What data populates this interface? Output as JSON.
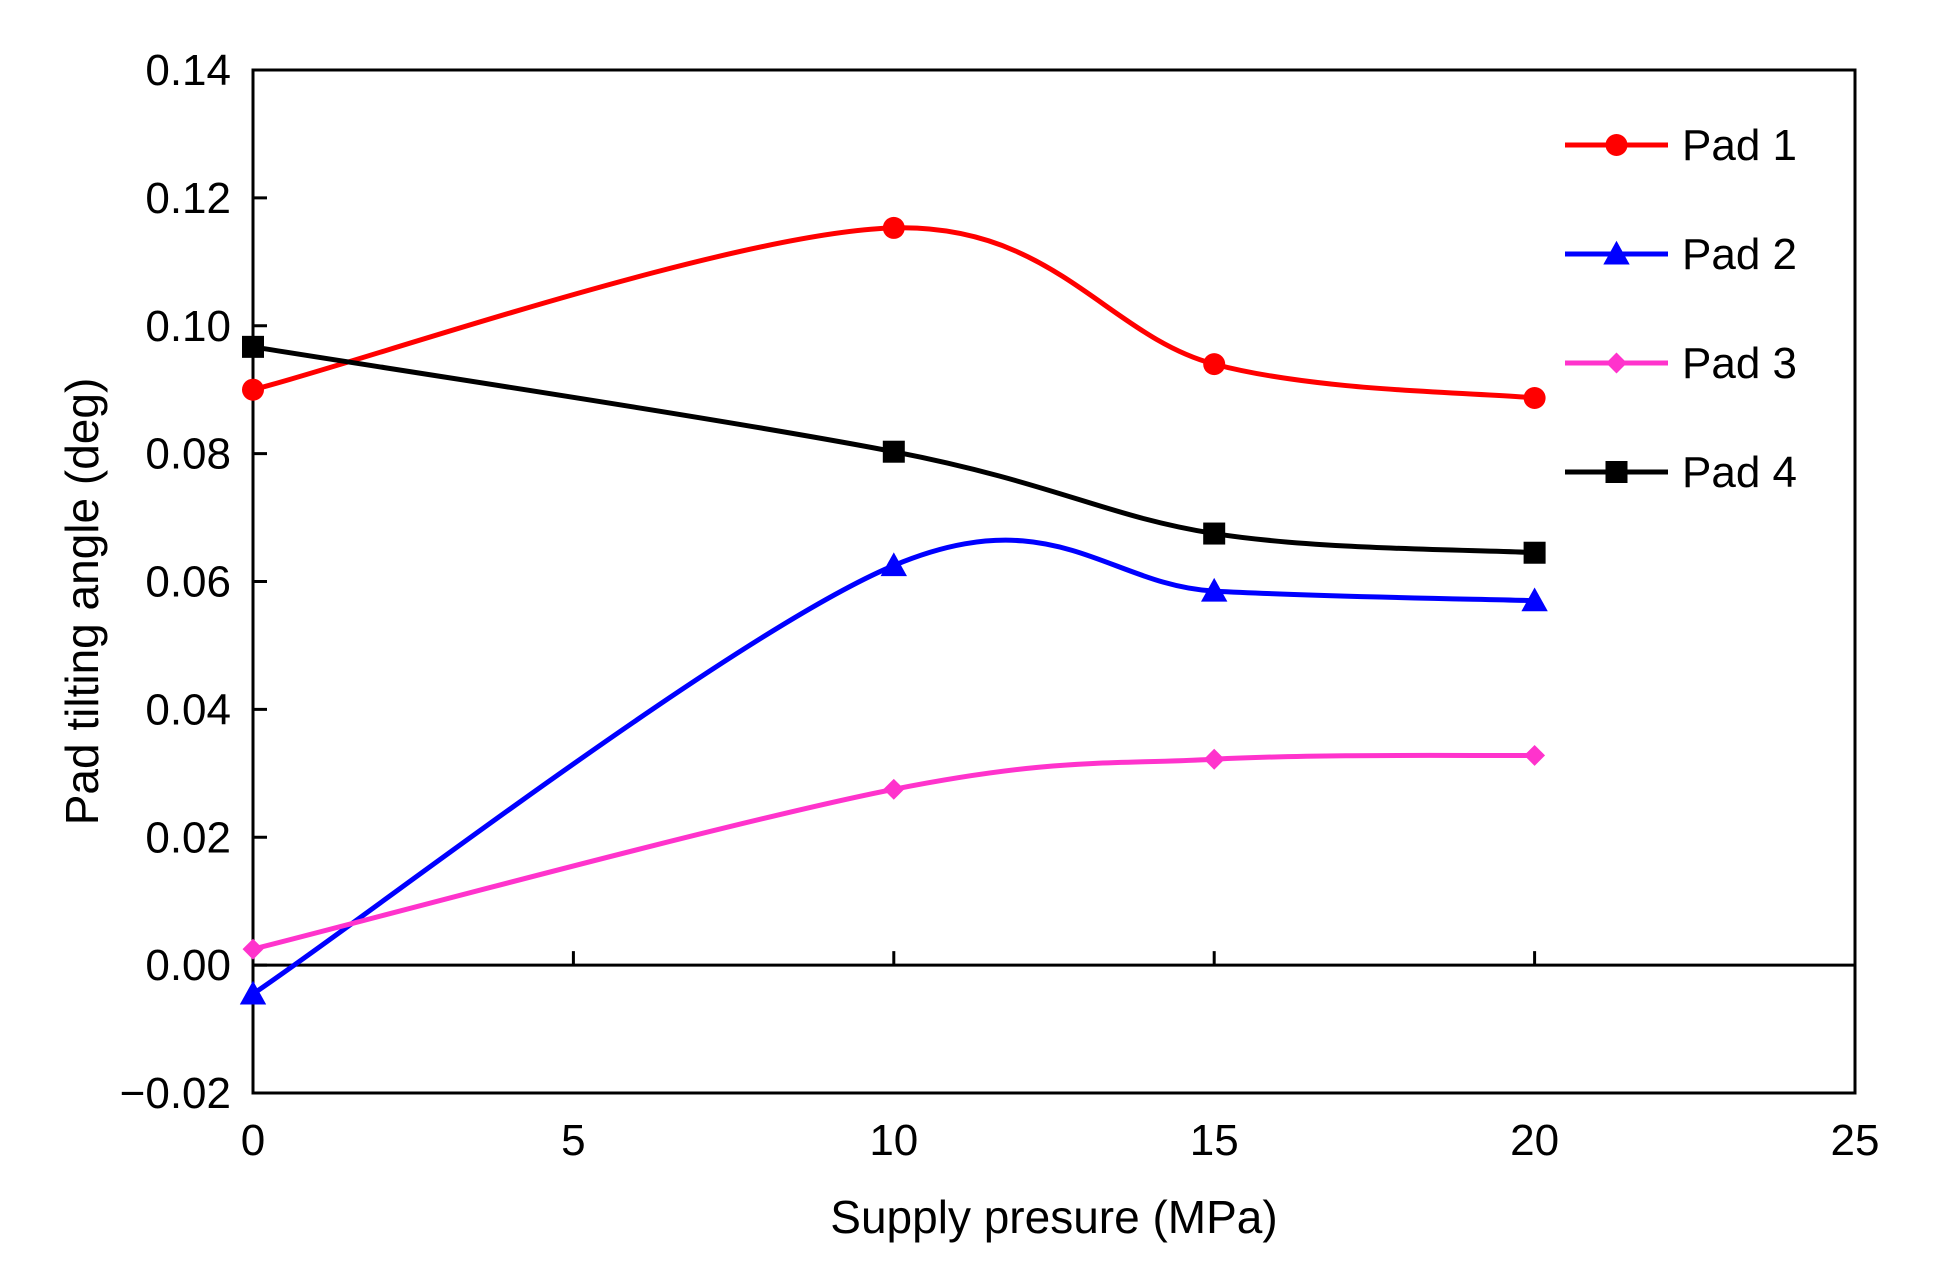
{
  "chart_data": {
    "type": "line",
    "title": "",
    "xlabel": "Supply presure (MPa)",
    "ylabel": "Pad tilting angle  (deg)",
    "xlim": [
      0,
      25
    ],
    "ylim": [
      -0.02,
      0.14
    ],
    "x_ticks": [
      0,
      5,
      10,
      15,
      20,
      25
    ],
    "x_tick_labels": [
      "0",
      "5",
      "10",
      "15",
      "20",
      "25"
    ],
    "y_ticks": [
      -0.02,
      0.0,
      0.02,
      0.04,
      0.06,
      0.08,
      0.1,
      0.12,
      0.14
    ],
    "y_tick_labels": [
      "−0.02",
      "0.00",
      "0.02",
      "0.04",
      "0.06",
      "0.08",
      "0.10",
      "0.12",
      "0.14"
    ],
    "grid": false,
    "smooth_lines": true,
    "zero_line": true,
    "legend_position": "top-right",
    "x": [
      0,
      10,
      15,
      20
    ],
    "series": [
      {
        "name": "Pad 1",
        "values": [
          0.09,
          0.1153,
          0.094,
          0.0887
        ],
        "color": "#ff0000",
        "marker": "circle"
      },
      {
        "name": "Pad 2",
        "values": [
          -0.0045,
          0.0625,
          0.0585,
          0.057
        ],
        "color": "#0000ff",
        "marker": "triangle"
      },
      {
        "name": "Pad 3",
        "values": [
          0.0025,
          0.0275,
          0.0322,
          0.0328
        ],
        "color": "#ff33cc",
        "marker": "diamond"
      },
      {
        "name": "Pad 4",
        "values": [
          0.0967,
          0.0803,
          0.0675,
          0.0645
        ],
        "color": "#000000",
        "marker": "square"
      }
    ]
  }
}
